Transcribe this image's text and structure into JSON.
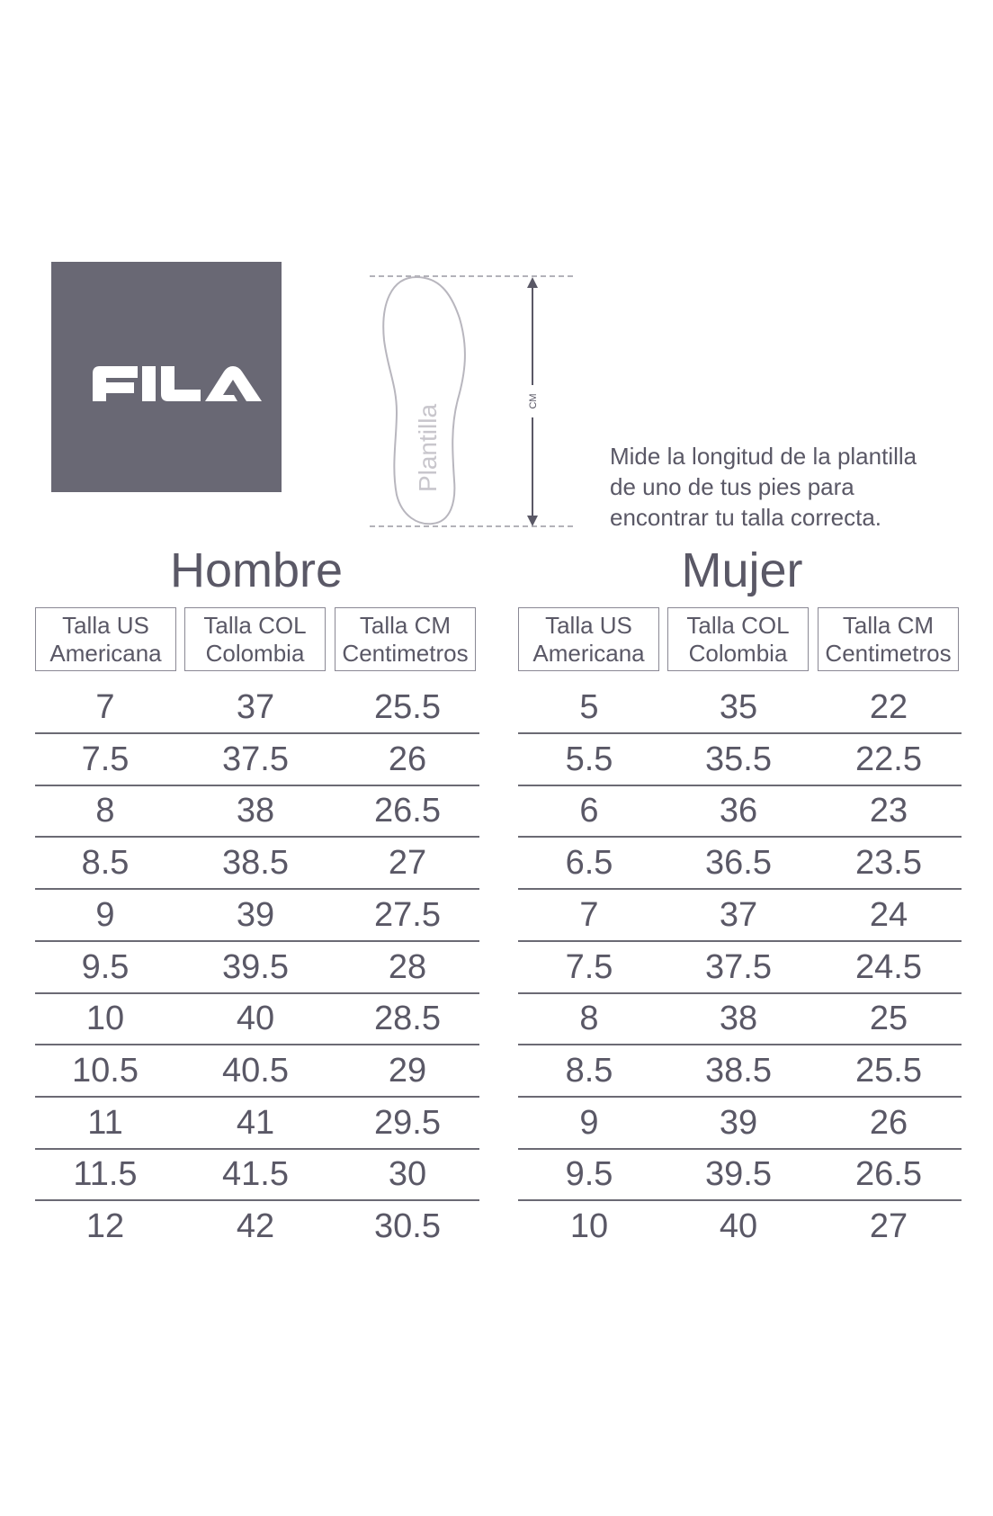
{
  "brand": {
    "logo_text": "FILA",
    "logo_bg": "#696874"
  },
  "insole": {
    "label": "Plantilla",
    "measure_unit": "CM"
  },
  "instruction": [
    "Mide la longitud de la plantilla",
    "de uno de tus pies para",
    "encontrar tu talla correcta."
  ],
  "tables": {
    "hombre": {
      "title": "Hombre",
      "headers": [
        [
          "Talla US",
          "Americana"
        ],
        [
          "Talla COL",
          "Colombia"
        ],
        [
          "Talla CM",
          "Centimetros"
        ]
      ],
      "rows": [
        [
          "7",
          "37",
          "25.5"
        ],
        [
          "7.5",
          "37.5",
          "26"
        ],
        [
          "8",
          "38",
          "26.5"
        ],
        [
          "8.5",
          "38.5",
          "27"
        ],
        [
          "9",
          "39",
          "27.5"
        ],
        [
          "9.5",
          "39.5",
          "28"
        ],
        [
          "10",
          "40",
          "28.5"
        ],
        [
          "10.5",
          "40.5",
          "29"
        ],
        [
          "11",
          "41",
          "29.5"
        ],
        [
          "11.5",
          "41.5",
          "30"
        ],
        [
          "12",
          "42",
          "30.5"
        ]
      ]
    },
    "mujer": {
      "title": "Mujer",
      "headers": [
        [
          "Talla US",
          "Americana"
        ],
        [
          "Talla COL",
          "Colombia"
        ],
        [
          "Talla CM",
          "Centimetros"
        ]
      ],
      "rows": [
        [
          "5",
          "35",
          "22"
        ],
        [
          "5.5",
          "35.5",
          "22.5"
        ],
        [
          "6",
          "36",
          "23"
        ],
        [
          "6.5",
          "36.5",
          "23.5"
        ],
        [
          "7",
          "37",
          "24"
        ],
        [
          "7.5",
          "37.5",
          "24.5"
        ],
        [
          "8",
          "38",
          "25"
        ],
        [
          "8.5",
          "38.5",
          "25.5"
        ],
        [
          "9",
          "39",
          "26"
        ],
        [
          "9.5",
          "39.5",
          "26.5"
        ],
        [
          "10",
          "40",
          "27"
        ]
      ]
    }
  }
}
